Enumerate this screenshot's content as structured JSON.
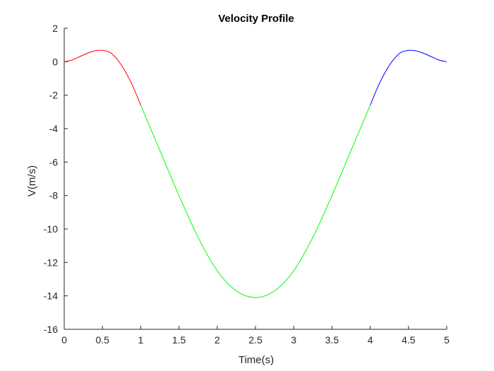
{
  "chart_data": {
    "type": "line",
    "title": "Velocity Profile",
    "xlabel": "Time(s)",
    "ylabel": "V(m/s)",
    "xlim": [
      0,
      5
    ],
    "ylim": [
      -16,
      2
    ],
    "x_ticks": [
      "0",
      "0.5",
      "1",
      "1.5",
      "2",
      "2.5",
      "3",
      "3.5",
      "4",
      "4.5",
      "5"
    ],
    "y_ticks": [
      "2",
      "0",
      "-2",
      "-4",
      "-6",
      "-8",
      "-10",
      "-12",
      "-14",
      "-16"
    ],
    "grid": false,
    "legend": "none",
    "series": [
      {
        "color": "#ff0000",
        "x": [
          0,
          0.1,
          0.2,
          0.3,
          0.4,
          0.5,
          0.6,
          0.7,
          0.8,
          0.9,
          1.0
        ],
        "y": [
          0,
          0.1,
          0.3,
          0.5,
          0.65,
          0.68,
          0.55,
          0.1,
          -0.6,
          -1.5,
          -2.6
        ]
      },
      {
        "color": "#00ff00",
        "x": [
          1.0,
          1.25,
          1.5,
          1.75,
          2.0,
          2.25,
          2.5,
          2.75,
          3.0,
          3.25,
          3.5,
          3.75,
          4.0
        ],
        "y": [
          -2.6,
          -5.3,
          -8.0,
          -10.5,
          -12.5,
          -13.7,
          -14.1,
          -13.7,
          -12.5,
          -10.5,
          -8.0,
          -5.3,
          -2.6
        ]
      },
      {
        "color": "#0000ff",
        "x": [
          4.0,
          4.1,
          4.2,
          4.3,
          4.4,
          4.5,
          4.6,
          4.7,
          4.8,
          4.9,
          5.0
        ],
        "y": [
          -2.6,
          -1.5,
          -0.6,
          0.1,
          0.55,
          0.68,
          0.65,
          0.5,
          0.3,
          0.1,
          0
        ]
      }
    ]
  }
}
